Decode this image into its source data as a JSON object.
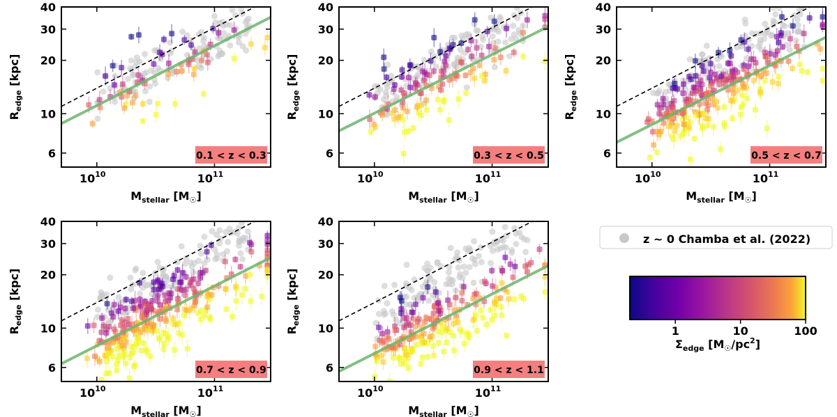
{
  "figure": {
    "xlabel_main": "M",
    "xlabel_sub": "stellar",
    "xlabel_unit": " [M",
    "xlabel_end": "]",
    "ylabel_main": "R",
    "ylabel_sub": "edge",
    "ylabel_unit": " [kpc]",
    "sun_symbol": "☉",
    "legend_label": "z ~ 0 Chamba et al. (2022)",
    "colorbar_label_main": "Σ",
    "colorbar_label_sub": "edge",
    "colorbar_label_unit": " [M",
    "colorbar_label_end": "/pc",
    "colorbar_label_exp": "2",
    "colorbar_label_close": "]",
    "colorbar_ticks": [
      "1",
      "10",
      "100"
    ],
    "colormap": "plasma",
    "y_ticks": [
      "6",
      "10",
      "20",
      "30",
      "40"
    ],
    "x_tick_base": "10",
    "x_tick_exps": [
      "10",
      "11"
    ],
    "colors": {
      "reference": "#c8c8c8",
      "fit_line": "#6db46d",
      "relation_line": "#000000",
      "redshift_box": "#f57e7e"
    }
  },
  "chart_data": [
    {
      "type": "scatter",
      "panel": "0.1 < z < 0.3",
      "xscale": "log",
      "yscale": "log",
      "xlim": [
        5000000000.0,
        300000000000.0
      ],
      "ylim": [
        5,
        40
      ],
      "fit_line": {
        "x": [
          5000000000.0,
          300000000000.0
        ],
        "y": [
          8.8,
          35
        ]
      },
      "dashed_line": {
        "x": [
          5000000000.0,
          220000000000.0
        ],
        "y": [
          11,
          40
        ]
      }
    },
    {
      "type": "scatter",
      "panel": "0.3 < z < 0.5",
      "xscale": "log",
      "yscale": "log",
      "xlim": [
        5000000000.0,
        300000000000.0
      ],
      "ylim": [
        5,
        40
      ],
      "fit_line": {
        "x": [
          5000000000.0,
          300000000000.0
        ],
        "y": [
          8.0,
          31
        ]
      },
      "dashed_line": {
        "x": [
          5000000000.0,
          220000000000.0
        ],
        "y": [
          11,
          40
        ]
      }
    },
    {
      "type": "scatter",
      "panel": "0.5 < z < 0.7",
      "xscale": "log",
      "yscale": "log",
      "xlim": [
        5000000000.0,
        300000000000.0
      ],
      "ylim": [
        5,
        40
      ],
      "fit_line": {
        "x": [
          5000000000.0,
          300000000000.0
        ],
        "y": [
          6.9,
          27
        ]
      },
      "dashed_line": {
        "x": [
          5000000000.0,
          220000000000.0
        ],
        "y": [
          11,
          40
        ]
      }
    },
    {
      "type": "scatter",
      "panel": "0.7 < z < 0.9",
      "xscale": "log",
      "yscale": "log",
      "xlim": [
        5000000000.0,
        300000000000.0
      ],
      "ylim": [
        5,
        40
      ],
      "fit_line": {
        "x": [
          5000000000.0,
          300000000000.0
        ],
        "y": [
          6.3,
          25
        ]
      },
      "dashed_line": {
        "x": [
          5000000000.0,
          220000000000.0
        ],
        "y": [
          11,
          40
        ]
      }
    },
    {
      "type": "scatter",
      "panel": "0.9 < z < 1.1",
      "xscale": "log",
      "yscale": "log",
      "xlim": [
        5000000000.0,
        300000000000.0
      ],
      "ylim": [
        5,
        40
      ],
      "fit_line": {
        "x": [
          5000000000.0,
          300000000000.0
        ],
        "y": [
          5.7,
          22.5
        ]
      },
      "dashed_line": {
        "x": [
          5000000000.0,
          220000000000.0
        ],
        "y": [
          11,
          40
        ]
      }
    }
  ]
}
